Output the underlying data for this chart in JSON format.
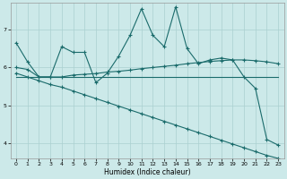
{
  "xlabel": "Humidex (Indice chaleur)",
  "ylabel": "",
  "xlim": [
    -0.5,
    23.5
  ],
  "ylim": [
    3.6,
    7.7
  ],
  "yticks": [
    4,
    5,
    6,
    7
  ],
  "xticks": [
    0,
    1,
    2,
    3,
    4,
    5,
    6,
    7,
    8,
    9,
    10,
    11,
    12,
    13,
    14,
    15,
    16,
    17,
    18,
    19,
    20,
    21,
    22,
    23
  ],
  "bg_color": "#cce9e9",
  "grid_color": "#aad0d0",
  "line_color": "#1a6b6b",
  "series": {
    "jagged": [
      6.65,
      6.15,
      5.75,
      5.75,
      6.55,
      6.4,
      6.4,
      5.6,
      5.85,
      6.3,
      6.85,
      7.55,
      6.85,
      6.55,
      7.6,
      6.5,
      6.1,
      6.2,
      6.25,
      6.2,
      5.75,
      5.45,
      4.1,
      3.95
    ],
    "smooth_upper": [
      6.0,
      5.95,
      5.75,
      5.75,
      5.75,
      5.8,
      5.82,
      5.84,
      5.88,
      5.9,
      5.93,
      5.97,
      6.0,
      6.03,
      6.06,
      6.1,
      6.13,
      6.16,
      6.18,
      6.2,
      6.2,
      6.18,
      6.15,
      6.1
    ],
    "flat_line": [
      5.75,
      5.75,
      5.75,
      5.75,
      5.75,
      5.75,
      5.75,
      5.75,
      5.75,
      5.75,
      5.75,
      5.75,
      5.75,
      5.75,
      5.75,
      5.75,
      5.75,
      5.75,
      5.75,
      5.75,
      5.75,
      5.75,
      5.75,
      5.75
    ],
    "linear_decline": [
      5.85,
      5.75,
      5.65,
      5.55,
      5.48,
      5.38,
      5.28,
      5.18,
      5.08,
      4.98,
      4.88,
      4.78,
      4.68,
      4.58,
      4.48,
      4.38,
      4.28,
      4.18,
      4.08,
      3.98,
      3.88,
      3.78,
      3.68,
      3.6
    ]
  }
}
